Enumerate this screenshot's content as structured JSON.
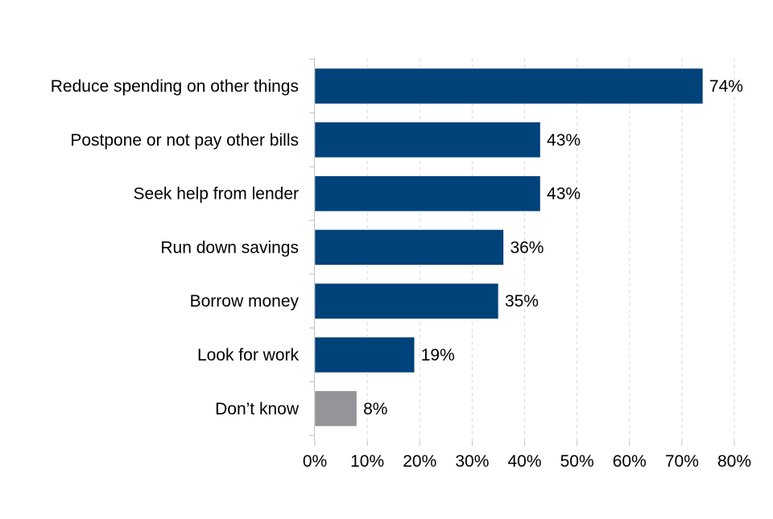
{
  "chart_data": {
    "type": "bar",
    "orientation": "horizontal",
    "title": "",
    "xlabel": "",
    "ylabel": "",
    "categories": [
      "Reduce spending on other things",
      "Postpone or not pay other bills",
      "Seek help from lender",
      "Run down savings",
      "Borrow money",
      "Look for work",
      "Don’t know"
    ],
    "values": [
      74,
      43,
      43,
      36,
      35,
      19,
      8
    ],
    "value_labels": [
      "74%",
      "43%",
      "43%",
      "36%",
      "35%",
      "19%",
      "8%"
    ],
    "bar_colors": [
      "#00427a",
      "#00427a",
      "#00427a",
      "#00427a",
      "#00427a",
      "#00427a",
      "#939598"
    ],
    "xlim": [
      0,
      80
    ],
    "x_ticks": [
      0,
      10,
      20,
      30,
      40,
      50,
      60,
      70,
      80
    ],
    "x_tick_labels": [
      "0%",
      "10%",
      "20%",
      "30%",
      "40%",
      "50%",
      "60%",
      "70%",
      "80%"
    ],
    "grid": "vertical dashed",
    "legend": "none"
  }
}
